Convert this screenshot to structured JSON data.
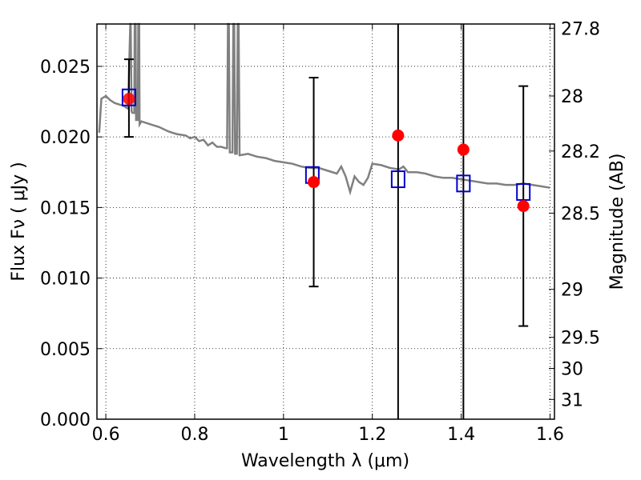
{
  "chart_data": {
    "type": "scatter",
    "xlabel": "Wavelength  λ (μm)",
    "ylabel": "Flux  Fν  ( μJy )",
    "y2label": "Magnitude (AB)",
    "xlim": [
      0.58,
      1.61
    ],
    "ylim": [
      0.0,
      0.028
    ],
    "grid": true,
    "x_ticks": [
      {
        "value": 0.6,
        "label": "0.6"
      },
      {
        "value": 0.8,
        "label": "0.8"
      },
      {
        "value": 1.0,
        "label": "1"
      },
      {
        "value": 1.2,
        "label": "1.2"
      },
      {
        "value": 1.4,
        "label": "1.4"
      },
      {
        "value": 1.6,
        "label": "1.6"
      }
    ],
    "y_ticks": [
      {
        "value": 0.0,
        "label": "0.000"
      },
      {
        "value": 0.005,
        "label": "0.005"
      },
      {
        "value": 0.01,
        "label": "0.010"
      },
      {
        "value": 0.015,
        "label": "0.015"
      },
      {
        "value": 0.02,
        "label": "0.020"
      },
      {
        "value": 0.025,
        "label": "0.025"
      }
    ],
    "y2_ticks": [
      {
        "flux": 0.0277,
        "label": "27.8"
      },
      {
        "flux": 0.0229,
        "label": "28"
      },
      {
        "flux": 0.019,
        "label": "28.2"
      },
      {
        "flux": 0.0146,
        "label": "28.5"
      },
      {
        "flux": 0.0092,
        "label": "29"
      },
      {
        "flux": 0.0058,
        "label": "29.5"
      },
      {
        "flux": 0.0036,
        "label": "30"
      },
      {
        "flux": 0.0014,
        "label": "31"
      }
    ],
    "model_spectrum": {
      "color": "#808080",
      "points": [
        [
          0.585,
          0.0203
        ],
        [
          0.59,
          0.0227
        ],
        [
          0.6,
          0.0229
        ],
        [
          0.61,
          0.0226
        ],
        [
          0.62,
          0.0224
        ],
        [
          0.63,
          0.0223
        ],
        [
          0.64,
          0.0222
        ],
        [
          0.65,
          0.022
        ],
        [
          0.655,
          0.0285
        ],
        [
          0.656,
          0.0285
        ],
        [
          0.658,
          0.0218
        ],
        [
          0.66,
          0.0217
        ],
        [
          0.664,
          0.0217
        ],
        [
          0.665,
          0.0285
        ],
        [
          0.667,
          0.0285
        ],
        [
          0.668,
          0.0212
        ],
        [
          0.672,
          0.0212
        ],
        [
          0.673,
          0.0285
        ],
        [
          0.675,
          0.0285
        ],
        [
          0.676,
          0.0209
        ],
        [
          0.68,
          0.0211
        ],
        [
          0.7,
          0.0209
        ],
        [
          0.72,
          0.0207
        ],
        [
          0.74,
          0.0204
        ],
        [
          0.75,
          0.0203
        ],
        [
          0.76,
          0.0202
        ],
        [
          0.78,
          0.0201
        ],
        [
          0.79,
          0.0199
        ],
        [
          0.8,
          0.02
        ],
        [
          0.81,
          0.0197
        ],
        [
          0.82,
          0.0198
        ],
        [
          0.83,
          0.0194
        ],
        [
          0.84,
          0.0196
        ],
        [
          0.85,
          0.0193
        ],
        [
          0.86,
          0.0193
        ],
        [
          0.87,
          0.0192
        ],
        [
          0.873,
          0.0192
        ],
        [
          0.875,
          0.0285
        ],
        [
          0.877,
          0.0285
        ],
        [
          0.879,
          0.0189
        ],
        [
          0.885,
          0.0189
        ],
        [
          0.887,
          0.0285
        ],
        [
          0.889,
          0.0285
        ],
        [
          0.891,
          0.0188
        ],
        [
          0.895,
          0.0188
        ],
        [
          0.897,
          0.0285
        ],
        [
          0.899,
          0.0285
        ],
        [
          0.901,
          0.0187
        ],
        [
          0.92,
          0.0188
        ],
        [
          0.94,
          0.0186
        ],
        [
          0.96,
          0.0185
        ],
        [
          0.98,
          0.0183
        ],
        [
          1.0,
          0.0182
        ],
        [
          1.02,
          0.0181
        ],
        [
          1.04,
          0.0179
        ],
        [
          1.06,
          0.0178
        ],
        [
          1.08,
          0.0178
        ],
        [
          1.1,
          0.0176
        ],
        [
          1.12,
          0.0174
        ],
        [
          1.13,
          0.0179
        ],
        [
          1.14,
          0.0172
        ],
        [
          1.15,
          0.0161
        ],
        [
          1.16,
          0.0172
        ],
        [
          1.17,
          0.0168
        ],
        [
          1.18,
          0.0166
        ],
        [
          1.19,
          0.0171
        ],
        [
          1.2,
          0.0181
        ],
        [
          1.22,
          0.018
        ],
        [
          1.24,
          0.0178
        ],
        [
          1.26,
          0.0177
        ],
        [
          1.27,
          0.0179
        ],
        [
          1.28,
          0.0175
        ],
        [
          1.3,
          0.0175
        ],
        [
          1.32,
          0.0174
        ],
        [
          1.34,
          0.0172
        ],
        [
          1.36,
          0.0171
        ],
        [
          1.38,
          0.0171
        ],
        [
          1.4,
          0.017
        ],
        [
          1.42,
          0.0169
        ],
        [
          1.44,
          0.0168
        ],
        [
          1.46,
          0.0167
        ],
        [
          1.48,
          0.0167
        ],
        [
          1.5,
          0.0166
        ],
        [
          1.52,
          0.0166
        ],
        [
          1.54,
          0.0167
        ],
        [
          1.56,
          0.0166
        ],
        [
          1.58,
          0.0165
        ],
        [
          1.6,
          0.0164
        ]
      ]
    },
    "model_points": {
      "color": "#0000cc",
      "x": [
        0.652,
        1.065,
        1.258,
        1.405,
        1.54
      ],
      "y": [
        0.0228,
        0.0173,
        0.017,
        0.0167,
        0.0161
      ]
    },
    "observed": {
      "color": "#ff0000",
      "x": [
        0.652,
        1.068,
        1.258,
        1.405,
        1.54
      ],
      "y": [
        0.0227,
        0.0168,
        0.0201,
        0.0191,
        0.0151
      ],
      "err_low": [
        0.02,
        0.0094,
        0.0,
        0.0,
        0.0066
      ],
      "err_high": [
        0.0255,
        0.0242,
        0.028,
        0.028,
        0.0236
      ],
      "cap": [
        true,
        true,
        false,
        false,
        true
      ]
    }
  }
}
